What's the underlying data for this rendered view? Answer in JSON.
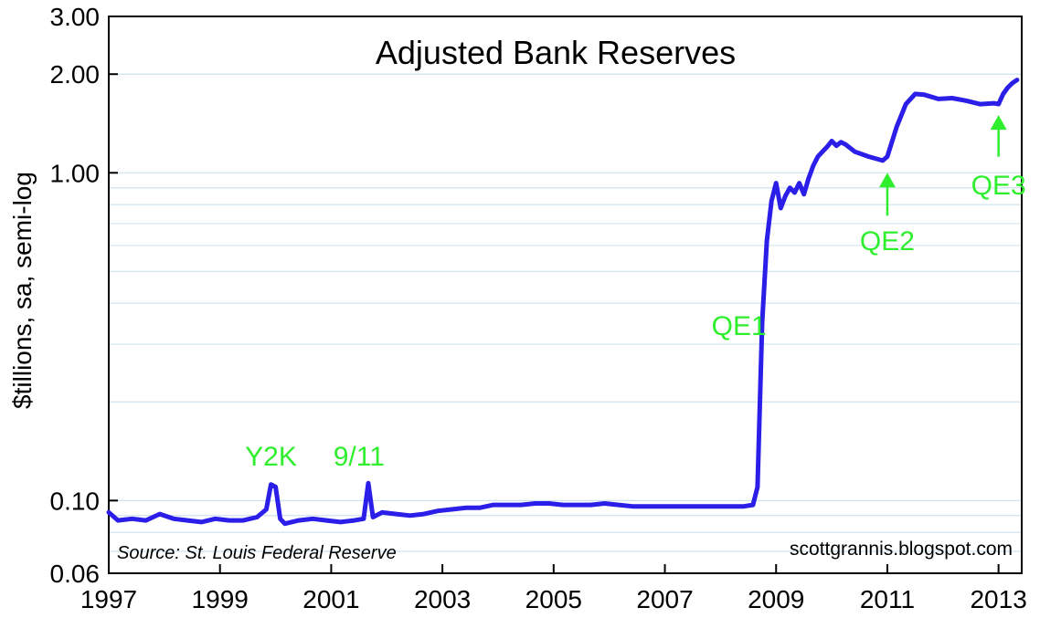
{
  "chart_data": {
    "type": "line",
    "title": "Adjusted Bank Reserves",
    "ylabel": "$tillions, sa, semi-log",
    "xlabel": "",
    "y_scale": "log",
    "ylim": [
      0.06,
      3.0
    ],
    "xlim": [
      "1997-01",
      "2013-06"
    ],
    "grid": true,
    "x_ticks": [
      "1997",
      "1999",
      "2001",
      "2003",
      "2005",
      "2007",
      "2009",
      "2011",
      "2013"
    ],
    "y_ticks": [
      {
        "value": 0.06,
        "label": "0.06"
      },
      {
        "value": 0.1,
        "label": "0.10"
      },
      {
        "value": 1.0,
        "label": "1.00"
      },
      {
        "value": 2.0,
        "label": "2.00"
      },
      {
        "value": 3.0,
        "label": "3.00"
      }
    ],
    "series": [
      {
        "color": "#2a1ee8",
        "points": [
          [
            "1997-01",
            0.092
          ],
          [
            "1997-03",
            0.087
          ],
          [
            "1997-06",
            0.088
          ],
          [
            "1997-09",
            0.087
          ],
          [
            "1997-12",
            0.091
          ],
          [
            "1998-03",
            0.088
          ],
          [
            "1998-06",
            0.087
          ],
          [
            "1998-09",
            0.086
          ],
          [
            "1998-12",
            0.088
          ],
          [
            "1999-03",
            0.087
          ],
          [
            "1999-06",
            0.087
          ],
          [
            "1999-09",
            0.089
          ],
          [
            "1999-11",
            0.094
          ],
          [
            "1999-12",
            0.112
          ],
          [
            "2000-01",
            0.11
          ],
          [
            "2000-02",
            0.088
          ],
          [
            "2000-03",
            0.085
          ],
          [
            "2000-06",
            0.087
          ],
          [
            "2000-09",
            0.088
          ],
          [
            "2000-12",
            0.087
          ],
          [
            "2001-03",
            0.086
          ],
          [
            "2001-06",
            0.087
          ],
          [
            "2001-08",
            0.088
          ],
          [
            "2001-09",
            0.113
          ],
          [
            "2001-10",
            0.089
          ],
          [
            "2001-12",
            0.092
          ],
          [
            "2002-03",
            0.091
          ],
          [
            "2002-06",
            0.09
          ],
          [
            "2002-09",
            0.091
          ],
          [
            "2002-12",
            0.093
          ],
          [
            "2003-03",
            0.094
          ],
          [
            "2003-06",
            0.095
          ],
          [
            "2003-09",
            0.095
          ],
          [
            "2003-12",
            0.097
          ],
          [
            "2004-03",
            0.097
          ],
          [
            "2004-06",
            0.097
          ],
          [
            "2004-09",
            0.098
          ],
          [
            "2004-12",
            0.098
          ],
          [
            "2005-03",
            0.097
          ],
          [
            "2005-06",
            0.097
          ],
          [
            "2005-09",
            0.097
          ],
          [
            "2005-12",
            0.098
          ],
          [
            "2006-03",
            0.097
          ],
          [
            "2006-06",
            0.096
          ],
          [
            "2006-09",
            0.096
          ],
          [
            "2006-12",
            0.096
          ],
          [
            "2007-03",
            0.096
          ],
          [
            "2007-06",
            0.096
          ],
          [
            "2007-09",
            0.096
          ],
          [
            "2007-12",
            0.096
          ],
          [
            "2008-03",
            0.096
          ],
          [
            "2008-06",
            0.096
          ],
          [
            "2008-08",
            0.097
          ],
          [
            "2008-09",
            0.11
          ],
          [
            "2008-10",
            0.35
          ],
          [
            "2008-11",
            0.62
          ],
          [
            "2008-12",
            0.82
          ],
          [
            "2009-01",
            0.93
          ],
          [
            "2009-02",
            0.78
          ],
          [
            "2009-03",
            0.85
          ],
          [
            "2009-04",
            0.9
          ],
          [
            "2009-05",
            0.87
          ],
          [
            "2009-06",
            0.93
          ],
          [
            "2009-07",
            0.86
          ],
          [
            "2009-08",
            0.96
          ],
          [
            "2009-09",
            1.05
          ],
          [
            "2009-10",
            1.12
          ],
          [
            "2009-11",
            1.16
          ],
          [
            "2009-12",
            1.2
          ],
          [
            "2010-01",
            1.25
          ],
          [
            "2010-02",
            1.21
          ],
          [
            "2010-03",
            1.24
          ],
          [
            "2010-04",
            1.22
          ],
          [
            "2010-06",
            1.16
          ],
          [
            "2010-09",
            1.12
          ],
          [
            "2010-12",
            1.09
          ],
          [
            "2011-01",
            1.12
          ],
          [
            "2011-03",
            1.38
          ],
          [
            "2011-05",
            1.62
          ],
          [
            "2011-07",
            1.74
          ],
          [
            "2011-09",
            1.73
          ],
          [
            "2011-12",
            1.68
          ],
          [
            "2012-03",
            1.69
          ],
          [
            "2012-06",
            1.66
          ],
          [
            "2012-09",
            1.62
          ],
          [
            "2012-12",
            1.63
          ],
          [
            "2013-01",
            1.62
          ],
          [
            "2013-02",
            1.74
          ],
          [
            "2013-03",
            1.82
          ],
          [
            "2013-04",
            1.88
          ],
          [
            "2013-05",
            1.92
          ]
        ]
      }
    ],
    "annotations": [
      {
        "id": "y2k",
        "text": "Y2K",
        "x": "1999-12",
        "y": 0.128,
        "color": "#2eee2e"
      },
      {
        "id": "nine-eleven",
        "text": "9/11",
        "x": "2001-07",
        "y": 0.128,
        "color": "#2eee2e"
      },
      {
        "id": "qe1",
        "text": "QE1",
        "x": "2008-05",
        "y": 0.32,
        "color": "#2eee2e"
      },
      {
        "id": "qe2",
        "text": "QE2",
        "x": "2011-01",
        "y": 0.58,
        "color": "#2eee2e",
        "arrow": true,
        "arrow_from": 0.74,
        "arrow_to": 1.0
      },
      {
        "id": "qe3",
        "text": "QE3",
        "x": "2013-01",
        "y": 0.86,
        "color": "#2eee2e",
        "arrow": true,
        "arrow_from": 1.12,
        "arrow_to": 1.5
      }
    ],
    "source_note": "Source:  St. Louis Federal Reserve",
    "watermark": "scottgrannis.blogspot.com"
  }
}
